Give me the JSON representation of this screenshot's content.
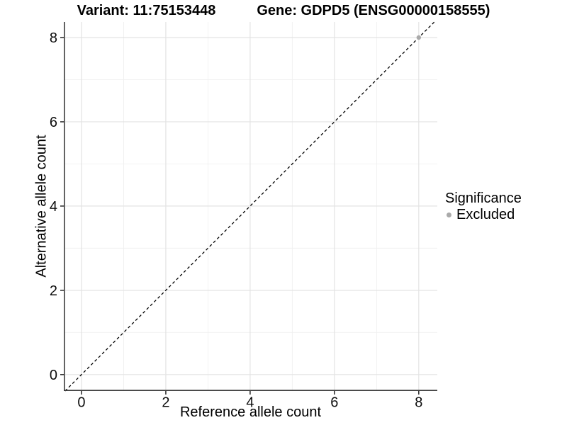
{
  "figure": {
    "background": "#ffffff"
  },
  "title": {
    "variant": "Variant: 11:75153448",
    "gene": "Gene: GDPD5 (ENSG00000158555)"
  },
  "axes": {
    "x_label": "Reference allele count",
    "y_label": "Alternative allele count"
  },
  "legend": {
    "title": "Significance",
    "items": [
      {
        "label": "Excluded",
        "marker": "circle",
        "color": "#aaaaaa"
      }
    ]
  },
  "chart_data": {
    "type": "scatter",
    "title": "Variant: 11:75153448   Gene: GDPD5 (ENSG00000158555)",
    "xlabel": "Reference allele count",
    "ylabel": "Alternative allele count",
    "xlim": [
      -0.42,
      8.44
    ],
    "ylim": [
      -0.39,
      8.37
    ],
    "x_ticks": [
      0,
      2,
      4,
      6,
      8
    ],
    "y_ticks": [
      0,
      2,
      4,
      6,
      8
    ],
    "x_minor_gridlines": [
      1,
      3,
      5,
      7
    ],
    "y_minor_gridlines": [
      1,
      3,
      5,
      7
    ],
    "grid": "on",
    "legend_position": "right-center",
    "series": [
      {
        "name": "Excluded",
        "type": "scatter",
        "color": "#aaaaaa",
        "marker_radius": 3.2,
        "points": [
          [
            8,
            8
          ]
        ]
      }
    ],
    "reference_line": {
      "kind": "identity y=x",
      "style": "dashed",
      "color": "#000000"
    }
  },
  "style": {
    "axis_line_color": "#3c3c3c",
    "tick_color": "#333333",
    "major_grid_color": "#e3e3e3",
    "minor_grid_color": "#f0f0f0",
    "tick_label_color": "#0d0d0d",
    "tick_label_font_px": 20
  }
}
